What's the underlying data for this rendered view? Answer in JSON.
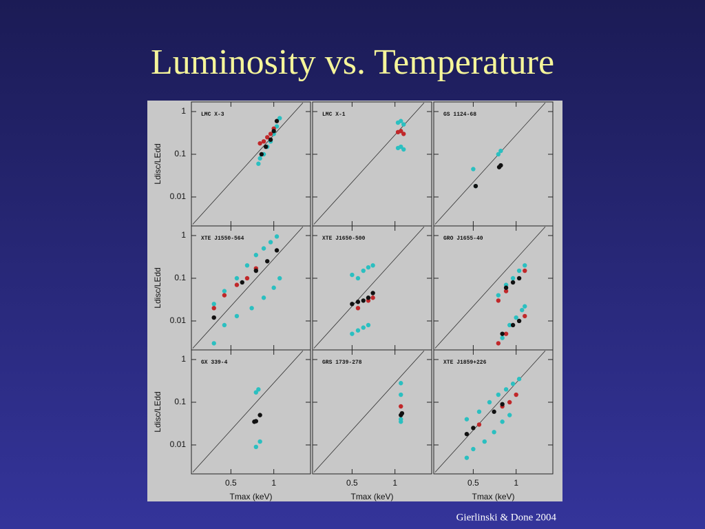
{
  "title": "Luminosity vs. Temperature",
  "citation": "Gierlinski & Done 2004",
  "chart_data": [
    {
      "type": "scatter",
      "title": "LMC X-3",
      "ylabel": "Ldisc/LEdd",
      "log": true,
      "xlim": [
        0.264,
        1.81
      ],
      "ylim": [
        0.0021,
        1.68
      ],
      "xticks": [
        0.5,
        1
      ],
      "yticks": [
        0.01,
        0.1,
        1
      ],
      "reference": {
        "x": [
          0.27,
          1.6
        ],
        "y": [
          0.0023,
          1.6
        ]
      },
      "series": [
        {
          "color": "#2bbfc0",
          "x": [
            0.78,
            0.8,
            0.85,
            0.9,
            0.95,
            1.0,
            1.05,
            1.1
          ],
          "y": [
            0.06,
            0.08,
            0.1,
            0.15,
            0.2,
            0.3,
            0.45,
            0.7
          ]
        },
        {
          "color": "#c0282a",
          "x": [
            0.8,
            0.85,
            0.9,
            0.95,
            1.0
          ],
          "y": [
            0.18,
            0.2,
            0.25,
            0.3,
            0.4
          ]
        },
        {
          "color": "#111111",
          "x": [
            0.82,
            0.88,
            0.95,
            1.0,
            1.05
          ],
          "y": [
            0.1,
            0.15,
            0.22,
            0.35,
            0.6
          ]
        }
      ]
    },
    {
      "type": "scatter",
      "title": "LMC X-1",
      "log": true,
      "xlim": [
        0.264,
        1.81
      ],
      "ylim": [
        0.0021,
        1.68
      ],
      "xticks": [
        0.5,
        1
      ],
      "yticks": [
        0.01,
        0.1,
        1
      ],
      "reference": {
        "x": [
          0.27,
          1.6
        ],
        "y": [
          0.0023,
          1.6
        ]
      },
      "series": [
        {
          "color": "#2bbfc0",
          "x": [
            1.05,
            1.1,
            1.15,
            1.05,
            1.1,
            1.15
          ],
          "y": [
            0.55,
            0.6,
            0.5,
            0.14,
            0.15,
            0.13
          ]
        },
        {
          "color": "#c0282a",
          "x": [
            1.05,
            1.1,
            1.15
          ],
          "y": [
            0.33,
            0.35,
            0.3
          ]
        }
      ]
    },
    {
      "type": "scatter",
      "title": "GS 1124-68",
      "log": true,
      "xlim": [
        0.264,
        1.81
      ],
      "ylim": [
        0.0021,
        1.68
      ],
      "xticks": [
        0.5,
        1
      ],
      "yticks": [
        0.01,
        0.1,
        1
      ],
      "reference": {
        "x": [
          0.27,
          1.6
        ],
        "y": [
          0.0023,
          1.6
        ]
      },
      "series": [
        {
          "color": "#2bbfc0",
          "x": [
            0.5,
            0.52,
            0.75,
            0.78
          ],
          "y": [
            0.045,
            0.018,
            0.1,
            0.12
          ]
        },
        {
          "color": "#111111",
          "x": [
            0.52,
            0.76,
            0.78
          ],
          "y": [
            0.018,
            0.05,
            0.055
          ]
        }
      ]
    },
    {
      "type": "scatter",
      "title": "XTE J1550-564",
      "ylabel": "Ldisc/LEdd",
      "log": true,
      "xlim": [
        0.264,
        1.81
      ],
      "ylim": [
        0.0021,
        1.68
      ],
      "xticks": [
        0.5,
        1
      ],
      "yticks": [
        0.01,
        0.1,
        1
      ],
      "reference": {
        "x": [
          0.27,
          1.6
        ],
        "y": [
          0.0023,
          1.6
        ]
      },
      "series": [
        {
          "color": "#2bbfc0",
          "x": [
            0.38,
            0.45,
            0.55,
            0.65,
            0.75,
            0.85,
            0.95,
            1.05,
            0.38,
            0.45,
            0.55,
            0.7,
            0.85,
            1.0,
            1.1
          ],
          "y": [
            0.025,
            0.05,
            0.1,
            0.2,
            0.35,
            0.5,
            0.7,
            0.95,
            0.003,
            0.008,
            0.013,
            0.02,
            0.035,
            0.06,
            0.1
          ]
        },
        {
          "color": "#c0282a",
          "x": [
            0.38,
            0.45,
            0.55,
            0.65,
            0.75
          ],
          "y": [
            0.02,
            0.04,
            0.07,
            0.1,
            0.17
          ]
        },
        {
          "color": "#111111",
          "x": [
            0.38,
            0.6,
            0.75,
            0.9,
            1.05
          ],
          "y": [
            0.012,
            0.08,
            0.15,
            0.25,
            0.45
          ]
        }
      ]
    },
    {
      "type": "scatter",
      "title": "XTE J1650-500",
      "log": true,
      "xlim": [
        0.264,
        1.81
      ],
      "ylim": [
        0.0021,
        1.68
      ],
      "xticks": [
        0.5,
        1
      ],
      "yticks": [
        0.01,
        0.1,
        1
      ],
      "reference": {
        "x": [
          0.27,
          1.6
        ],
        "y": [
          0.0023,
          1.6
        ]
      },
      "series": [
        {
          "color": "#2bbfc0",
          "x": [
            0.5,
            0.55,
            0.6,
            0.65,
            0.7,
            0.5,
            0.55,
            0.6,
            0.65
          ],
          "y": [
            0.12,
            0.1,
            0.15,
            0.18,
            0.2,
            0.005,
            0.006,
            0.007,
            0.008
          ]
        },
        {
          "color": "#c0282a",
          "x": [
            0.55,
            0.65,
            0.7
          ],
          "y": [
            0.02,
            0.03,
            0.035
          ]
        },
        {
          "color": "#111111",
          "x": [
            0.5,
            0.55,
            0.6,
            0.65,
            0.7
          ],
          "y": [
            0.025,
            0.028,
            0.03,
            0.035,
            0.045
          ]
        }
      ]
    },
    {
      "type": "scatter",
      "title": "GRO J1655-40",
      "log": true,
      "xlim": [
        0.264,
        1.81
      ],
      "ylim": [
        0.0021,
        1.68
      ],
      "xticks": [
        0.5,
        1
      ],
      "yticks": [
        0.01,
        0.1,
        1
      ],
      "reference": {
        "x": [
          0.27,
          1.6
        ],
        "y": [
          0.0023,
          1.6
        ]
      },
      "series": [
        {
          "color": "#2bbfc0",
          "x": [
            0.75,
            0.85,
            0.95,
            1.05,
            1.15,
            0.8,
            0.9,
            1.0,
            1.1,
            1.15
          ],
          "y": [
            0.04,
            0.07,
            0.1,
            0.15,
            0.2,
            0.004,
            0.008,
            0.012,
            0.018,
            0.022
          ]
        },
        {
          "color": "#c0282a",
          "x": [
            0.75,
            0.85,
            1.15,
            0.75,
            0.85,
            1.15
          ],
          "y": [
            0.03,
            0.05,
            0.15,
            0.003,
            0.005,
            0.013
          ]
        },
        {
          "color": "#111111",
          "x": [
            0.85,
            0.95,
            1.05,
            0.8,
            0.95,
            1.05
          ],
          "y": [
            0.06,
            0.08,
            0.1,
            0.005,
            0.008,
            0.01
          ]
        }
      ]
    },
    {
      "type": "scatter",
      "title": "GX 339-4",
      "ylabel": "Ldisc/LEdd",
      "xlabel": "Tmax (keV)",
      "log": true,
      "xlim": [
        0.264,
        1.81
      ],
      "ylim": [
        0.0021,
        1.68
      ],
      "xticks": [
        0.5,
        1
      ],
      "yticks": [
        0.01,
        0.1,
        1
      ],
      "reference": {
        "x": [
          0.27,
          1.6
        ],
        "y": [
          0.0023,
          1.6
        ]
      },
      "series": [
        {
          "color": "#2bbfc0",
          "x": [
            0.75,
            0.78,
            0.8,
            0.75
          ],
          "y": [
            0.17,
            0.2,
            0.012,
            0.009
          ]
        },
        {
          "color": "#111111",
          "x": [
            0.73,
            0.75,
            0.8
          ],
          "y": [
            0.035,
            0.036,
            0.05
          ]
        }
      ]
    },
    {
      "type": "scatter",
      "title": "GRS 1739-278",
      "xlabel": "Tmax (keV)",
      "log": true,
      "xlim": [
        0.264,
        1.81
      ],
      "ylim": [
        0.0021,
        1.68
      ],
      "xticks": [
        0.5,
        1
      ],
      "yticks": [
        0.01,
        0.1,
        1
      ],
      "reference": {
        "x": [
          0.27,
          1.6
        ],
        "y": [
          0.0023,
          1.6
        ]
      },
      "series": [
        {
          "color": "#2bbfc0",
          "x": [
            1.1,
            1.1,
            1.1,
            1.1
          ],
          "y": [
            0.28,
            0.15,
            0.04,
            0.035
          ]
        },
        {
          "color": "#c0282a",
          "x": [
            1.1
          ],
          "y": [
            0.08
          ]
        },
        {
          "color": "#111111",
          "x": [
            1.1,
            1.12
          ],
          "y": [
            0.05,
            0.055
          ]
        }
      ]
    },
    {
      "type": "scatter",
      "title": "XTE J1859+226",
      "xlabel": "Tmax (keV)",
      "log": true,
      "xlim": [
        0.264,
        1.81
      ],
      "ylim": [
        0.0021,
        1.68
      ],
      "xticks": [
        0.5,
        1
      ],
      "yticks": [
        0.01,
        0.1,
        1
      ],
      "reference": {
        "x": [
          0.27,
          1.6
        ],
        "y": [
          0.0023,
          1.6
        ]
      },
      "series": [
        {
          "color": "#2bbfc0",
          "x": [
            0.45,
            0.55,
            0.65,
            0.75,
            0.85,
            0.95,
            1.05,
            0.45,
            0.5,
            0.6,
            0.7,
            0.8,
            0.9
          ],
          "y": [
            0.04,
            0.06,
            0.1,
            0.15,
            0.2,
            0.27,
            0.35,
            0.005,
            0.008,
            0.012,
            0.02,
            0.035,
            0.05
          ]
        },
        {
          "color": "#c0282a",
          "x": [
            0.55,
            0.8,
            0.9,
            1.0
          ],
          "y": [
            0.03,
            0.08,
            0.1,
            0.15
          ]
        },
        {
          "color": "#111111",
          "x": [
            0.45,
            0.5,
            0.7,
            0.8
          ],
          "y": [
            0.018,
            0.025,
            0.06,
            0.09
          ]
        }
      ]
    }
  ]
}
